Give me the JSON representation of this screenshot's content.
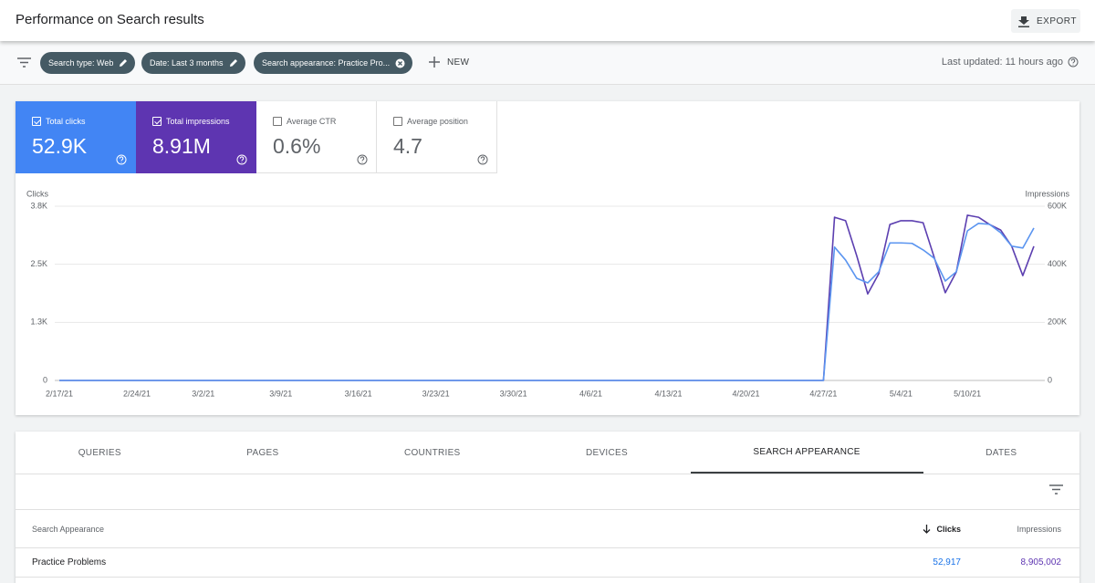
{
  "header": {
    "title": "Performance on Search results",
    "export": "EXPORT"
  },
  "filters": {
    "chips": [
      "Search type: Web",
      "Date: Last 3 months",
      "Search appearance: Practice Pro..."
    ],
    "new": "NEW",
    "last_updated": "Last updated: 11 hours ago"
  },
  "metrics": [
    {
      "label": "Total clicks",
      "value": "52.9K",
      "checked": true,
      "color": "#4285f4"
    },
    {
      "label": "Total impressions",
      "value": "8.91M",
      "checked": true,
      "color": "#5e35b1"
    },
    {
      "label": "Average CTR",
      "value": "0.6%",
      "checked": false,
      "color": "#00897b"
    },
    {
      "label": "Average position",
      "value": "4.7",
      "checked": false,
      "color": "#e8710a"
    }
  ],
  "chart_data": {
    "type": "line",
    "y_label": "Clicks",
    "y2_label": "Impressions",
    "x": [
      "2021-02-17",
      "2021-02-18",
      "2021-02-19",
      "2021-02-20",
      "2021-02-21",
      "2021-02-22",
      "2021-02-23",
      "2021-02-24",
      "2021-02-25",
      "2021-02-26",
      "2021-02-27",
      "2021-02-28",
      "2021-03-01",
      "2021-03-02",
      "2021-03-03",
      "2021-03-04",
      "2021-03-05",
      "2021-03-06",
      "2021-03-07",
      "2021-03-08",
      "2021-03-09",
      "2021-03-10",
      "2021-03-11",
      "2021-03-12",
      "2021-03-13",
      "2021-03-14",
      "2021-03-15",
      "2021-03-16",
      "2021-03-17",
      "2021-03-18",
      "2021-03-19",
      "2021-03-20",
      "2021-03-21",
      "2021-03-22",
      "2021-03-23",
      "2021-03-24",
      "2021-03-25",
      "2021-03-26",
      "2021-03-27",
      "2021-03-28",
      "2021-03-29",
      "2021-03-30",
      "2021-03-31",
      "2021-04-01",
      "2021-04-02",
      "2021-04-03",
      "2021-04-04",
      "2021-04-05",
      "2021-04-06",
      "2021-04-07",
      "2021-04-08",
      "2021-04-09",
      "2021-04-10",
      "2021-04-11",
      "2021-04-12",
      "2021-04-13",
      "2021-04-14",
      "2021-04-15",
      "2021-04-16",
      "2021-04-17",
      "2021-04-18",
      "2021-04-19",
      "2021-04-20",
      "2021-04-21",
      "2021-04-22",
      "2021-04-23",
      "2021-04-24",
      "2021-04-25",
      "2021-04-26",
      "2021-04-27",
      "2021-04-28",
      "2021-04-29",
      "2021-04-30",
      "2021-05-01",
      "2021-05-02",
      "2021-05-03",
      "2021-05-04",
      "2021-05-05",
      "2021-05-06",
      "2021-05-07",
      "2021-05-08",
      "2021-05-09",
      "2021-05-10",
      "2021-05-11",
      "2021-05-12",
      "2021-05-13",
      "2021-05-14",
      "2021-05-15",
      "2021-05-16"
    ],
    "series": [
      {
        "color": "#5c3fb0",
        "axis": "y2",
        "values": [
          0,
          0,
          0,
          0,
          0,
          0,
          0,
          0,
          0,
          0,
          0,
          0,
          0,
          0,
          0,
          0,
          0,
          0,
          0,
          0,
          0,
          0,
          0,
          0,
          0,
          0,
          0,
          0,
          0,
          0,
          0,
          0,
          0,
          0,
          0,
          0,
          0,
          0,
          0,
          0,
          0,
          0,
          0,
          0,
          0,
          0,
          0,
          0,
          0,
          0,
          0,
          0,
          0,
          0,
          0,
          0,
          0,
          0,
          0,
          0,
          0,
          0,
          0,
          0,
          0,
          0,
          0,
          0,
          0,
          0,
          562000,
          550000,
          430000,
          298000,
          368000,
          537000,
          550000,
          550000,
          543000,
          424000,
          302000,
          374000,
          569000,
          562000,
          537000,
          518000,
          462000,
          361000,
          462000
        ]
      },
      {
        "color": "#5b95f0",
        "axis": "y",
        "values": [
          0,
          0,
          0,
          0,
          0,
          0,
          0,
          0,
          0,
          0,
          0,
          0,
          0,
          0,
          0,
          0,
          0,
          0,
          0,
          0,
          0,
          0,
          0,
          0,
          0,
          0,
          0,
          0,
          0,
          0,
          0,
          0,
          0,
          0,
          0,
          0,
          0,
          0,
          0,
          0,
          0,
          0,
          0,
          0,
          0,
          0,
          0,
          0,
          0,
          0,
          0,
          0,
          0,
          0,
          0,
          0,
          0,
          0,
          0,
          0,
          0,
          0,
          0,
          0,
          0,
          0,
          0,
          0,
          0,
          0,
          2870,
          2590,
          2200,
          2100,
          2340,
          2960,
          2960,
          2950,
          2810,
          2630,
          2140,
          2340,
          3220,
          3380,
          3360,
          3180,
          2890,
          2850,
          3280
        ]
      }
    ],
    "ylim": [
      0,
      3750
    ],
    "yticks": [
      0,
      {
        "value": 1250,
        "label": "1.3K"
      },
      {
        "value": 2500,
        "label": "2.5K"
      },
      {
        "value": 3750,
        "label": "3.8K"
      }
    ],
    "y2lim": [
      0,
      600000
    ],
    "y2ticks": [
      0,
      {
        "value": 200000,
        "label": "200K"
      },
      {
        "value": 400000,
        "label": "400K"
      },
      {
        "value": 600000,
        "label": "600K"
      }
    ],
    "xticks": [
      {
        "value": "2021-02-17",
        "label": "2/17/21"
      },
      {
        "value": "2021-02-24",
        "label": "2/24/21"
      },
      {
        "value": "2021-03-02",
        "label": "3/2/21"
      },
      {
        "value": "2021-03-09",
        "label": "3/9/21"
      },
      {
        "value": "2021-03-16",
        "label": "3/16/21"
      },
      {
        "value": "2021-03-23",
        "label": "3/23/21"
      },
      {
        "value": "2021-03-30",
        "label": "3/30/21"
      },
      {
        "value": "2021-04-06",
        "label": "4/6/21"
      },
      {
        "value": "2021-04-13",
        "label": "4/13/21"
      },
      {
        "value": "2021-04-20",
        "label": "4/20/21"
      },
      {
        "value": "2021-04-27",
        "label": "4/27/21"
      },
      {
        "value": "2021-05-04",
        "label": "5/4/21"
      },
      {
        "value": "2021-05-10",
        "label": "5/10/21"
      }
    ],
    "grid": true
  },
  "tabs": {
    "items": [
      "QUERIES",
      "PAGES",
      "COUNTRIES",
      "DEVICES",
      "SEARCH APPEARANCE",
      "DATES"
    ],
    "active": 4
  },
  "table": {
    "columns": [
      "Search Appearance",
      "Clicks",
      "Impressions"
    ],
    "rows": [
      [
        "Practice Problems",
        "52,917",
        "8,905,002"
      ]
    ]
  }
}
